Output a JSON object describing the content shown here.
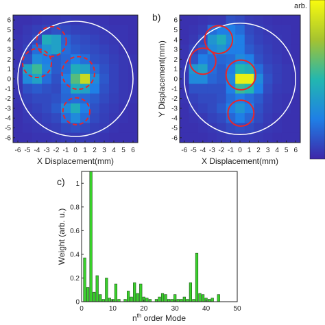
{
  "colors": {
    "axis": "#222222",
    "bar_fill": "#39d22b",
    "bar_stroke": "#1a4a14",
    "circle_red": "#e8262a",
    "circle_white": "#ffffff"
  },
  "chart_data": [
    {
      "type": "heatmap",
      "panel_label": "",
      "xlabel": "X Displacement(mm)",
      "ylabel": "",
      "xticks": [
        "-6",
        "-5",
        "-4",
        "-3",
        "-2",
        "-1",
        "0",
        "1",
        "2",
        "3",
        "4",
        "5",
        "6"
      ],
      "yticks": [
        "6",
        "5",
        "4",
        "3",
        "2",
        "1",
        "0",
        "-1",
        "-2",
        "-3",
        "-4",
        "-5",
        "-6"
      ],
      "xlim": [
        -6.5,
        6.5
      ],
      "ylim": [
        -6.5,
        6.5
      ],
      "colormap": "parula",
      "grid_rows_top_to_bottom": [
        [
          0.03,
          0.03,
          0.04,
          0.05,
          0.05,
          0.06,
          0.05,
          0.05,
          0.04,
          0.04,
          0.03,
          0.03,
          0.03
        ],
        [
          0.03,
          0.05,
          0.07,
          0.09,
          0.12,
          0.1,
          0.08,
          0.07,
          0.06,
          0.05,
          0.04,
          0.04,
          0.03
        ],
        [
          0.04,
          0.06,
          0.1,
          0.45,
          0.4,
          0.18,
          0.12,
          0.1,
          0.08,
          0.06,
          0.05,
          0.04,
          0.03
        ],
        [
          0.04,
          0.08,
          0.2,
          0.35,
          0.4,
          0.2,
          0.15,
          0.12,
          0.1,
          0.08,
          0.06,
          0.04,
          0.03
        ],
        [
          0.04,
          0.12,
          0.3,
          0.25,
          0.15,
          0.18,
          0.25,
          0.2,
          0.12,
          0.1,
          0.07,
          0.05,
          0.04
        ],
        [
          0.05,
          0.4,
          0.55,
          0.3,
          0.15,
          0.2,
          0.45,
          0.4,
          0.2,
          0.12,
          0.08,
          0.05,
          0.04
        ],
        [
          0.05,
          0.3,
          0.4,
          0.2,
          0.12,
          0.25,
          0.6,
          0.85,
          0.3,
          0.14,
          0.08,
          0.05,
          0.04
        ],
        [
          0.04,
          0.12,
          0.15,
          0.12,
          0.1,
          0.2,
          0.45,
          0.4,
          0.25,
          0.12,
          0.08,
          0.05,
          0.04
        ],
        [
          0.04,
          0.08,
          0.1,
          0.1,
          0.12,
          0.18,
          0.2,
          0.18,
          0.15,
          0.1,
          0.07,
          0.05,
          0.04
        ],
        [
          0.03,
          0.06,
          0.08,
          0.1,
          0.15,
          0.3,
          0.45,
          0.25,
          0.12,
          0.08,
          0.06,
          0.04,
          0.03
        ],
        [
          0.03,
          0.05,
          0.06,
          0.08,
          0.1,
          0.2,
          0.3,
          0.2,
          0.1,
          0.07,
          0.05,
          0.04,
          0.03
        ],
        [
          0.03,
          0.04,
          0.05,
          0.06,
          0.07,
          0.1,
          0.12,
          0.1,
          0.07,
          0.06,
          0.04,
          0.03,
          0.03
        ],
        [
          0.03,
          0.03,
          0.04,
          0.04,
          0.05,
          0.06,
          0.06,
          0.06,
          0.05,
          0.04,
          0.03,
          0.03,
          0.03
        ]
      ],
      "boundary_circle": {
        "cx": 0,
        "cy": 0,
        "r": 6.0
      },
      "mode_circles": [
        {
          "cx": -2.5,
          "cy": 3.8,
          "r": 1.55,
          "dashed": true
        },
        {
          "cx": -4.0,
          "cy": 1.6,
          "r": 1.5,
          "dashed": true
        },
        {
          "cx": 0.3,
          "cy": 0.6,
          "r": 1.7,
          "dashed": true
        },
        {
          "cx": 0.1,
          "cy": -3.3,
          "r": 1.4,
          "dashed": true
        }
      ]
    },
    {
      "type": "heatmap",
      "panel_label": "b)",
      "xlabel": "X Displacement(mm)",
      "ylabel": "Y Displacement(mm)",
      "xticks": [
        "-6",
        "-5",
        "-4",
        "-3",
        "-2",
        "-1",
        "0",
        "1",
        "2",
        "3",
        "4",
        "5",
        "6"
      ],
      "yticks": [
        "6",
        "5",
        "4",
        "3",
        "2",
        "1",
        "0",
        "-1",
        "-2",
        "-3",
        "-4",
        "-5",
        "-6"
      ],
      "xlim": [
        -6.5,
        6.5
      ],
      "ylim": [
        -6.5,
        6.5
      ],
      "colormap": "parula",
      "colorbar_label": "arb.",
      "grid_rows_top_to_bottom": [
        [
          0.03,
          0.03,
          0.04,
          0.05,
          0.05,
          0.12,
          0.1,
          0.06,
          0.05,
          0.04,
          0.03,
          0.03,
          0.03
        ],
        [
          0.03,
          0.04,
          0.06,
          0.2,
          0.25,
          0.25,
          0.2,
          0.1,
          0.07,
          0.05,
          0.04,
          0.04,
          0.03
        ],
        [
          0.03,
          0.05,
          0.1,
          0.35,
          0.45,
          0.3,
          0.25,
          0.12,
          0.08,
          0.06,
          0.05,
          0.04,
          0.03
        ],
        [
          0.04,
          0.08,
          0.15,
          0.3,
          0.35,
          0.25,
          0.25,
          0.15,
          0.1,
          0.07,
          0.05,
          0.04,
          0.03
        ],
        [
          0.04,
          0.12,
          0.25,
          0.2,
          0.18,
          0.2,
          0.3,
          0.25,
          0.12,
          0.08,
          0.06,
          0.04,
          0.03
        ],
        [
          0.05,
          0.35,
          0.4,
          0.2,
          0.15,
          0.25,
          0.5,
          0.45,
          0.2,
          0.1,
          0.07,
          0.05,
          0.04
        ],
        [
          0.05,
          0.3,
          0.3,
          0.18,
          0.15,
          0.3,
          0.95,
          0.95,
          0.3,
          0.12,
          0.07,
          0.05,
          0.04
        ],
        [
          0.04,
          0.12,
          0.12,
          0.12,
          0.12,
          0.25,
          0.55,
          0.5,
          0.25,
          0.1,
          0.06,
          0.05,
          0.04
        ],
        [
          0.04,
          0.08,
          0.1,
          0.1,
          0.12,
          0.2,
          0.25,
          0.2,
          0.15,
          0.08,
          0.05,
          0.04,
          0.03
        ],
        [
          0.03,
          0.06,
          0.08,
          0.1,
          0.15,
          0.25,
          0.35,
          0.25,
          0.12,
          0.07,
          0.05,
          0.04,
          0.03
        ],
        [
          0.03,
          0.04,
          0.05,
          0.08,
          0.1,
          0.18,
          0.25,
          0.18,
          0.1,
          0.06,
          0.04,
          0.03,
          0.03
        ],
        [
          0.03,
          0.03,
          0.04,
          0.05,
          0.07,
          0.1,
          0.12,
          0.1,
          0.07,
          0.05,
          0.04,
          0.03,
          0.03
        ],
        [
          0.03,
          0.03,
          0.03,
          0.04,
          0.05,
          0.06,
          0.06,
          0.06,
          0.05,
          0.04,
          0.03,
          0.03,
          0.03
        ]
      ],
      "boundary_circle": {
        "cx": 0,
        "cy": 0,
        "r": 6.0
      },
      "mode_circles": [
        {
          "cx": -2.3,
          "cy": 4.0,
          "r": 1.5,
          "dashed": false
        },
        {
          "cx": -4.0,
          "cy": 1.8,
          "r": 1.4,
          "dashed": false
        },
        {
          "cx": 0.1,
          "cy": 0.4,
          "r": 1.6,
          "dashed": false
        },
        {
          "cx": 0.1,
          "cy": -3.5,
          "r": 1.4,
          "dashed": false
        }
      ]
    },
    {
      "type": "bar",
      "panel_label": "c)",
      "xlabel_pre": "n",
      "xlabel_sup": "th",
      "xlabel_post": " order Mode",
      "ylabel": "Weight (arb. u.)",
      "xlim": [
        0,
        50
      ],
      "ylim": [
        0,
        1.1
      ],
      "xticks": [
        0,
        10,
        20,
        30,
        40,
        50
      ],
      "yticks": [
        0,
        0.2,
        0.4,
        0.6,
        0.8,
        1
      ],
      "x": [
        1,
        2,
        3,
        4,
        5,
        6,
        7,
        8,
        9,
        10,
        11,
        12,
        14,
        15,
        16,
        17,
        18,
        19,
        20,
        21,
        22,
        24,
        25,
        26,
        27,
        28,
        29,
        30,
        31,
        32,
        33,
        34,
        35,
        36,
        37,
        38,
        39,
        40,
        41,
        42,
        44
      ],
      "values": [
        0.37,
        0.12,
        1.1,
        0.08,
        0.22,
        0.06,
        0.02,
        0.2,
        0.03,
        0.02,
        0.15,
        0.02,
        0.02,
        0.09,
        0.04,
        0.16,
        0.07,
        0.15,
        0.04,
        0.03,
        0.02,
        0.02,
        0.04,
        0.07,
        0.06,
        0.02,
        0.02,
        0.06,
        0.02,
        0.02,
        0.04,
        0.02,
        0.16,
        0.02,
        0.41,
        0.07,
        0.06,
        0.03,
        0.02,
        0.03,
        0.06
      ]
    }
  ]
}
